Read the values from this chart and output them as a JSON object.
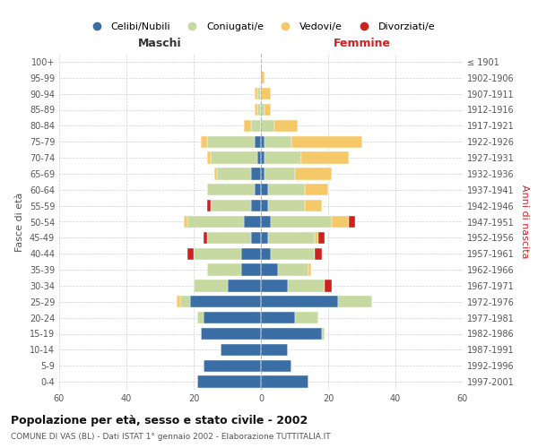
{
  "age_groups": [
    "0-4",
    "5-9",
    "10-14",
    "15-19",
    "20-24",
    "25-29",
    "30-34",
    "35-39",
    "40-44",
    "45-49",
    "50-54",
    "55-59",
    "60-64",
    "65-69",
    "70-74",
    "75-79",
    "80-84",
    "85-89",
    "90-94",
    "95-99",
    "100+"
  ],
  "birth_years": [
    "1997-2001",
    "1992-1996",
    "1987-1991",
    "1982-1986",
    "1977-1981",
    "1972-1976",
    "1967-1971",
    "1962-1966",
    "1957-1961",
    "1952-1956",
    "1947-1951",
    "1942-1946",
    "1937-1941",
    "1932-1936",
    "1927-1931",
    "1922-1926",
    "1917-1921",
    "1912-1916",
    "1907-1911",
    "1902-1906",
    "≤ 1901"
  ],
  "male": {
    "celibi": [
      19,
      17,
      12,
      18,
      17,
      21,
      10,
      6,
      6,
      3,
      5,
      3,
      2,
      3,
      1,
      2,
      0,
      0,
      0,
      0,
      0
    ],
    "coniugati": [
      0,
      0,
      0,
      0,
      2,
      3,
      10,
      10,
      14,
      13,
      17,
      12,
      14,
      10,
      14,
      14,
      3,
      1,
      1,
      0,
      0
    ],
    "vedovi": [
      0,
      0,
      0,
      0,
      0,
      1,
      0,
      0,
      0,
      0,
      1,
      0,
      0,
      1,
      1,
      2,
      2,
      1,
      1,
      0,
      0
    ],
    "divorziati": [
      0,
      0,
      0,
      0,
      0,
      0,
      0,
      0,
      2,
      1,
      0,
      1,
      0,
      0,
      0,
      0,
      0,
      0,
      0,
      0,
      0
    ]
  },
  "female": {
    "nubili": [
      14,
      9,
      8,
      18,
      10,
      23,
      8,
      5,
      3,
      2,
      3,
      2,
      2,
      1,
      1,
      1,
      0,
      0,
      0,
      0,
      0
    ],
    "coniugate": [
      0,
      0,
      0,
      1,
      7,
      10,
      11,
      9,
      13,
      14,
      18,
      11,
      11,
      9,
      11,
      8,
      4,
      1,
      0,
      0,
      0
    ],
    "vedove": [
      0,
      0,
      0,
      0,
      0,
      0,
      0,
      1,
      0,
      1,
      5,
      5,
      7,
      11,
      14,
      21,
      7,
      2,
      3,
      1,
      0
    ],
    "divorziate": [
      0,
      0,
      0,
      0,
      0,
      0,
      2,
      0,
      2,
      2,
      2,
      0,
      0,
      0,
      0,
      0,
      0,
      0,
      0,
      0,
      0
    ]
  },
  "colors": {
    "celibi": "#3a6ea5",
    "coniugati": "#c5d9a0",
    "vedovi": "#f5c96a",
    "divorziati": "#cc2222"
  },
  "title": "Popolazione per età, sesso e stato civile - 2002",
  "subtitle": "COMUNE DI VAS (BL) - Dati ISTAT 1° gennaio 2002 - Elaborazione TUTTITALIA.IT",
  "xlabel_left": "Maschi",
  "xlabel_right": "Femmine",
  "ylabel_left": "Fasce di età",
  "ylabel_right": "Anni di nascita",
  "legend_labels": [
    "Celibi/Nubili",
    "Coniugati/e",
    "Vedovi/e",
    "Divorziati/e"
  ],
  "xlim": 60,
  "background_color": "#ffffff",
  "grid_color": "#cccccc"
}
